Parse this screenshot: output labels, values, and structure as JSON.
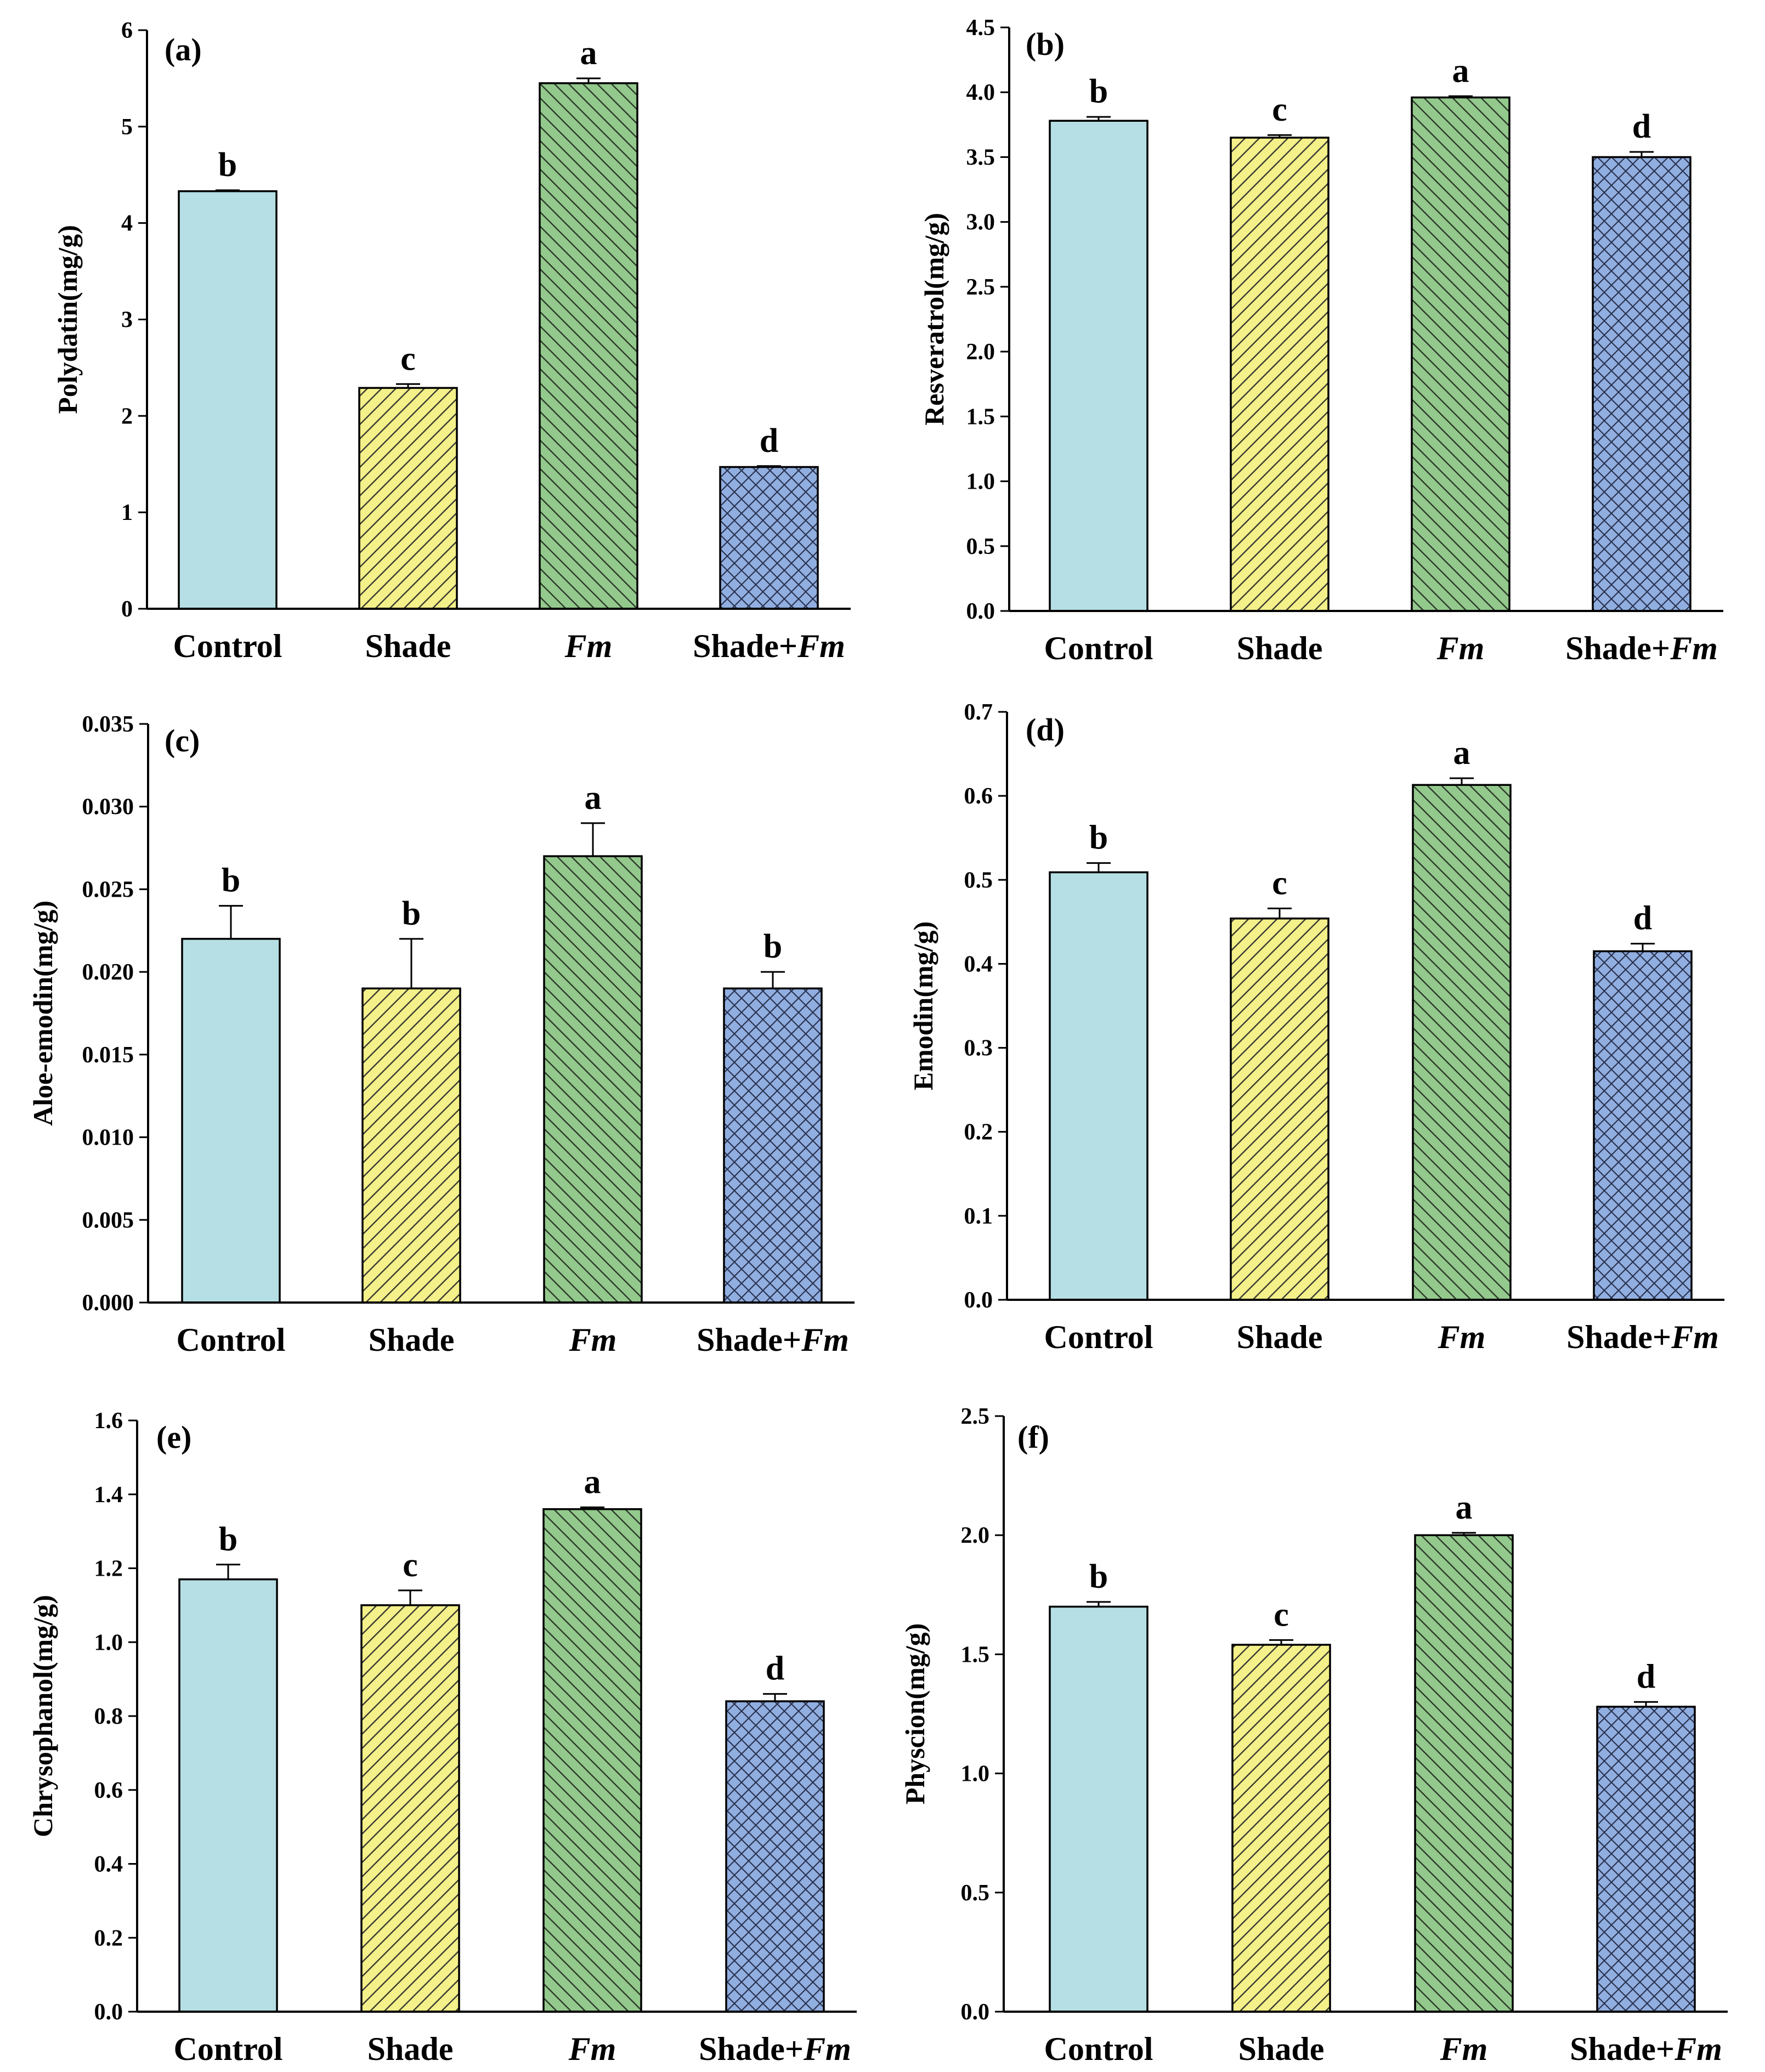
{
  "chart_data": [
    {
      "type": "bar",
      "panel_label": "(a)",
      "title": "",
      "xlabel": "",
      "ylabel": "Polydatin(mg/g)",
      "categories": [
        "Control",
        "Shade",
        "Fm",
        "Shade+Fm"
      ],
      "values": [
        4.33,
        2.29,
        5.45,
        1.47
      ],
      "errors": [
        0.01,
        0.04,
        0.05,
        0.01
      ],
      "significance": [
        "b",
        "c",
        "a",
        "d"
      ],
      "ylim": [
        0,
        6
      ],
      "yticks": [
        "0",
        "1",
        "2",
        "3",
        "4",
        "5",
        "6"
      ],
      "legend": "none",
      "grid": false
    },
    {
      "type": "bar",
      "panel_label": "(b)",
      "title": "",
      "xlabel": "",
      "ylabel": "Resveratrol(mg/g)",
      "categories": [
        "Control",
        "Shade",
        "Fm",
        "Shade+Fm"
      ],
      "values": [
        3.78,
        3.65,
        3.96,
        3.5
      ],
      "errors": [
        0.03,
        0.02,
        0.01,
        0.04
      ],
      "significance": [
        "b",
        "c",
        "a",
        "d"
      ],
      "ylim": [
        0,
        4.5
      ],
      "yticks": [
        "0.0",
        "0.5",
        "1.0",
        "1.5",
        "2.0",
        "2.5",
        "3.0",
        "3.5",
        "4.0",
        "4.5"
      ],
      "legend": "none",
      "grid": false
    },
    {
      "type": "bar",
      "panel_label": "(c)",
      "title": "",
      "xlabel": "",
      "ylabel": "Aloe-emodin(mg/g)",
      "categories": [
        "Control",
        "Shade",
        "Fm",
        "Shade+Fm"
      ],
      "values": [
        0.022,
        0.019,
        0.027,
        0.019
      ],
      "errors": [
        0.002,
        0.003,
        0.002,
        0.001
      ],
      "significance": [
        "b",
        "b",
        "a",
        "b"
      ],
      "ylim": [
        0,
        0.035
      ],
      "yticks": [
        "0.000",
        "0.005",
        "0.010",
        "0.015",
        "0.020",
        "0.025",
        "0.030",
        "0.035"
      ],
      "legend": "none",
      "grid": false
    },
    {
      "type": "bar",
      "panel_label": "(d)",
      "title": "",
      "xlabel": "",
      "ylabel": "Emodin(mg/g)",
      "categories": [
        "Control",
        "Shade",
        "Fm",
        "Shade+Fm"
      ],
      "values": [
        0.509,
        0.454,
        0.613,
        0.415
      ],
      "errors": [
        0.011,
        0.012,
        0.008,
        0.009
      ],
      "significance": [
        "b",
        "c",
        "a",
        "d"
      ],
      "ylim": [
        0,
        0.7
      ],
      "yticks": [
        "0.0",
        "0.1",
        "0.2",
        "0.3",
        "0.4",
        "0.5",
        "0.6",
        "0.7"
      ],
      "legend": "none",
      "grid": false
    },
    {
      "type": "bar",
      "panel_label": "(e)",
      "title": "",
      "xlabel": "",
      "ylabel": "Chrysophanol(mg/g)",
      "categories": [
        "Control",
        "Shade",
        "Fm",
        "Shade+Fm"
      ],
      "values": [
        1.17,
        1.1,
        1.36,
        0.84
      ],
      "errors": [
        0.04,
        0.04,
        0.005,
        0.02
      ],
      "significance": [
        "b",
        "c",
        "a",
        "d"
      ],
      "ylim": [
        0,
        1.6
      ],
      "yticks": [
        "0.0",
        "0.2",
        "0.4",
        "0.6",
        "0.8",
        "1.0",
        "1.2",
        "1.4",
        "1.6"
      ],
      "legend": "none",
      "grid": false
    },
    {
      "type": "bar",
      "panel_label": "(f)",
      "title": "",
      "xlabel": "",
      "ylabel": "Physcion(mg/g)",
      "categories": [
        "Control",
        "Shade",
        "Fm",
        "Shade+Fm"
      ],
      "values": [
        1.7,
        1.54,
        2.0,
        1.28
      ],
      "errors": [
        0.02,
        0.02,
        0.01,
        0.02
      ],
      "significance": [
        "b",
        "c",
        "a",
        "d"
      ],
      "ylim": [
        0,
        2.5
      ],
      "yticks": [
        "0.0",
        "0.5",
        "1.0",
        "1.5",
        "2.0",
        "2.5"
      ],
      "legend": "none",
      "grid": false
    }
  ],
  "style": {
    "bar_colors": [
      "#b5dfe4",
      "#f4f08a",
      "#93c98c",
      "#91aee0"
    ],
    "hatch": [
      "none",
      "diagonal",
      "diagonal-back",
      "crosshatch"
    ]
  }
}
